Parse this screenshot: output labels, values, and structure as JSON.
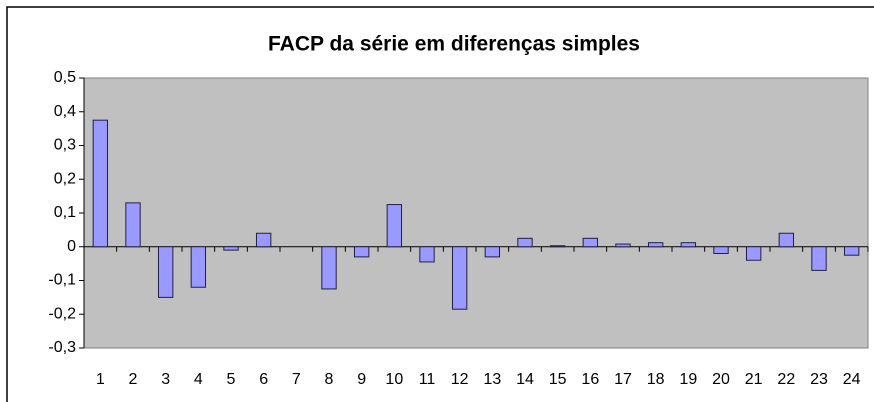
{
  "chart_data": {
    "type": "bar",
    "title": "FACP da série em diferenças simples",
    "categories": [
      "1",
      "2",
      "3",
      "4",
      "5",
      "6",
      "7",
      "8",
      "9",
      "10",
      "11",
      "12",
      "13",
      "14",
      "15",
      "16",
      "17",
      "18",
      "19",
      "20",
      "21",
      "22",
      "23",
      "24"
    ],
    "values": [
      0.375,
      0.13,
      -0.15,
      -0.12,
      -0.01,
      0.04,
      0,
      -0.125,
      -0.03,
      0.125,
      -0.045,
      -0.185,
      -0.03,
      0.025,
      0.003,
      0.025,
      0.008,
      0.012,
      0.012,
      -0.02,
      -0.04,
      0.04,
      -0.07,
      -0.025
    ],
    "color": "#9999ff",
    "ylim": [
      -0.3,
      0.5
    ],
    "yticks": [
      {
        "value": -0.3,
        "label": "-0,3"
      },
      {
        "value": -0.2,
        "label": "-0,2"
      },
      {
        "value": -0.1,
        "label": "-0,1"
      },
      0,
      {
        "value": 0.1,
        "label": "0,1"
      },
      {
        "value": 0.2,
        "label": "0,2"
      },
      {
        "value": 0.3,
        "label": "0,3"
      },
      {
        "value": 0.4,
        "label": "0,4"
      },
      {
        "value": 0.5,
        "label": "0,5"
      }
    ],
    "grid": false
  }
}
